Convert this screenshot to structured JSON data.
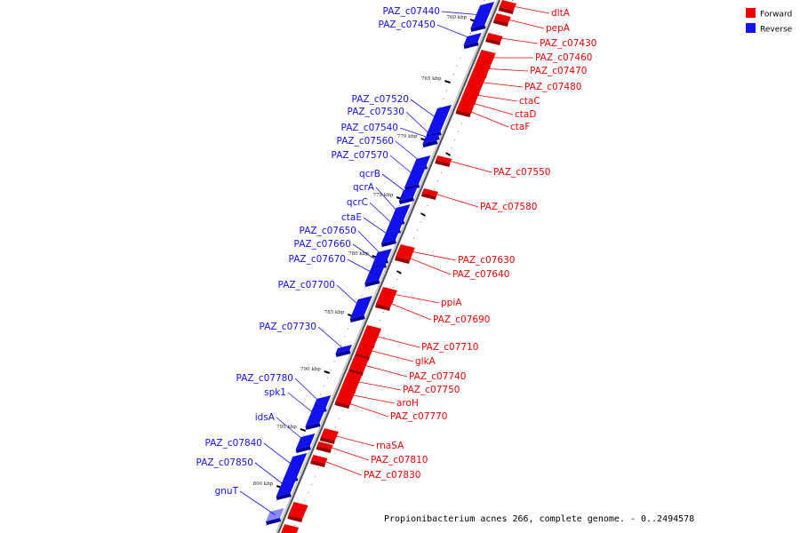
{
  "caption": "Propionibacterium acnes 266, complete genome. - 0..2494578",
  "legend": {
    "items": [
      {
        "label": "Forward",
        "color": "#ee0000"
      },
      {
        "label": "Reverse",
        "color": "#1111ee"
      }
    ]
  },
  "colors": {
    "forward": "#ee0000",
    "forward_shade": "#990000",
    "reverse": "#1111ee",
    "reverse_shade": "#000099",
    "reverse_light": "#8888ff",
    "backbone": "#888888"
  },
  "ticks": [
    "760 kbp",
    "765 kbp",
    "770 kbp",
    "775 kbp",
    "780 kbp",
    "785 kbp",
    "790 kbp",
    "795 kbp",
    "800 kbp"
  ],
  "reverse_genes": [
    "PAZ_c07440",
    "PAZ_c07450",
    "PAZ_c07520",
    "PAZ_c07530",
    "PAZ_c07540",
    "PAZ_c07560",
    "PAZ_c07570",
    "qcrB",
    "qcrA",
    "qcrC",
    "ctaE",
    "PAZ_c07650",
    "PAZ_c07660",
    "PAZ_c07670",
    "PAZ_c07700",
    "PAZ_c07730",
    "PAZ_c07780",
    "spk1",
    "idsA",
    "PAZ_c07840",
    "PAZ_c07850",
    "gnuT"
  ],
  "forward_genes": [
    "dltA",
    "pepA",
    "PAZ_c07430",
    "PAZ_c07460",
    "PAZ_c07470",
    "PAZ_c07480",
    "ctaC",
    "ctaD",
    "ctaF",
    "PAZ_c07550",
    "PAZ_c07580",
    "PAZ_c07630",
    "PAZ_c07640",
    "ppiA",
    "PAZ_c07690",
    "PAZ_c07710",
    "glkA",
    "PAZ_c07740",
    "PAZ_c07750",
    "aroH",
    "PAZ_c07770",
    "rnaSA",
    "PAZ_c07810",
    "PAZ_c07830"
  ]
}
